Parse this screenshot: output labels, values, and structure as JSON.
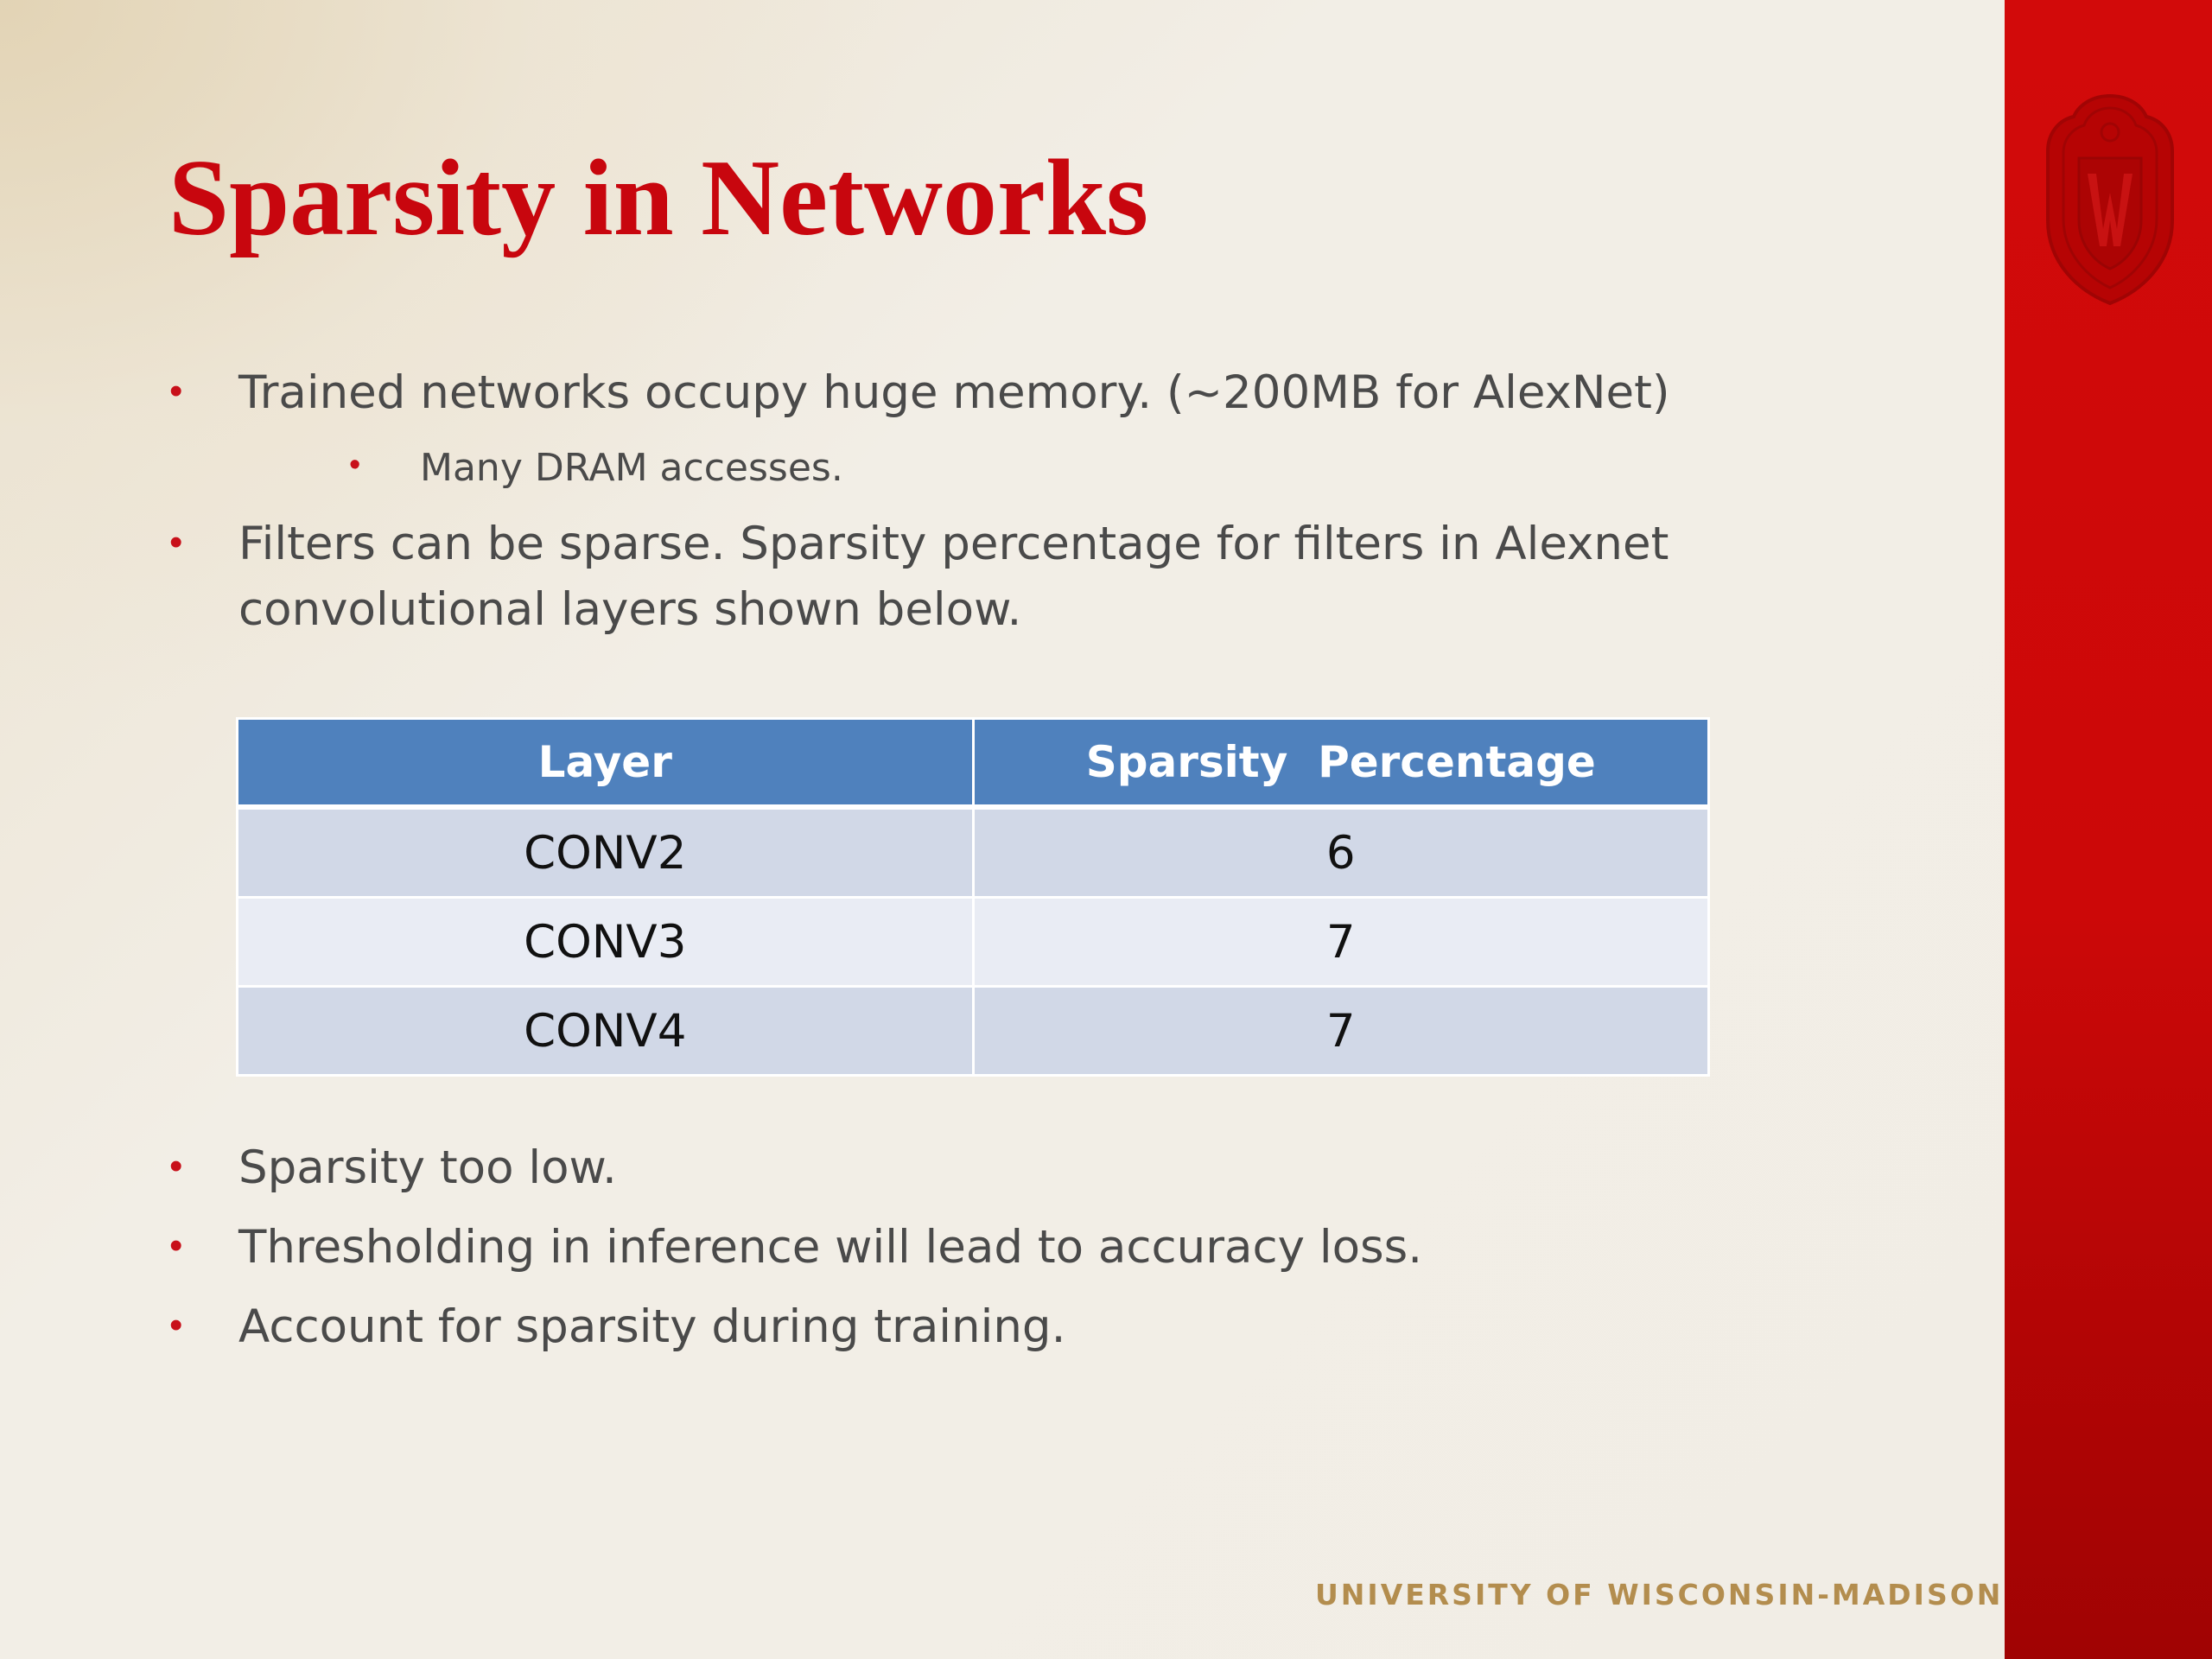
{
  "slide": {
    "title": "Sparsity in Networks",
    "bullets_top": [
      {
        "text": "Trained networks occupy huge memory. (~200MB for AlexNet)",
        "level": 1
      },
      {
        "text": "Many DRAM accesses.",
        "level": 2
      },
      {
        "text": "Filters can be sparse. Sparsity percentage for filters in Alexnet",
        "level": 1
      },
      {
        "text": "convolutional layers shown below.",
        "level": 1,
        "continuation": true
      }
    ],
    "table": {
      "headers": [
        "Layer",
        "Sparsity  Percentage"
      ],
      "rows": [
        [
          "CONV2",
          "6"
        ],
        [
          "CONV3",
          "7"
        ],
        [
          "CONV4",
          "7"
        ]
      ]
    },
    "bullets_bottom": [
      "Sparsity too low.",
      "Thresholding in inference will lead to accuracy loss.",
      "Account for sparsity during training."
    ],
    "footer": "UNIVERSITY OF WISCONSIN-MADISON",
    "logo": "uw-crest-icon",
    "colors": {
      "accent": "#c8060e",
      "sidebar": "#cc0808",
      "table_header": "#4f81bd",
      "footer": "#b38d4e"
    }
  }
}
